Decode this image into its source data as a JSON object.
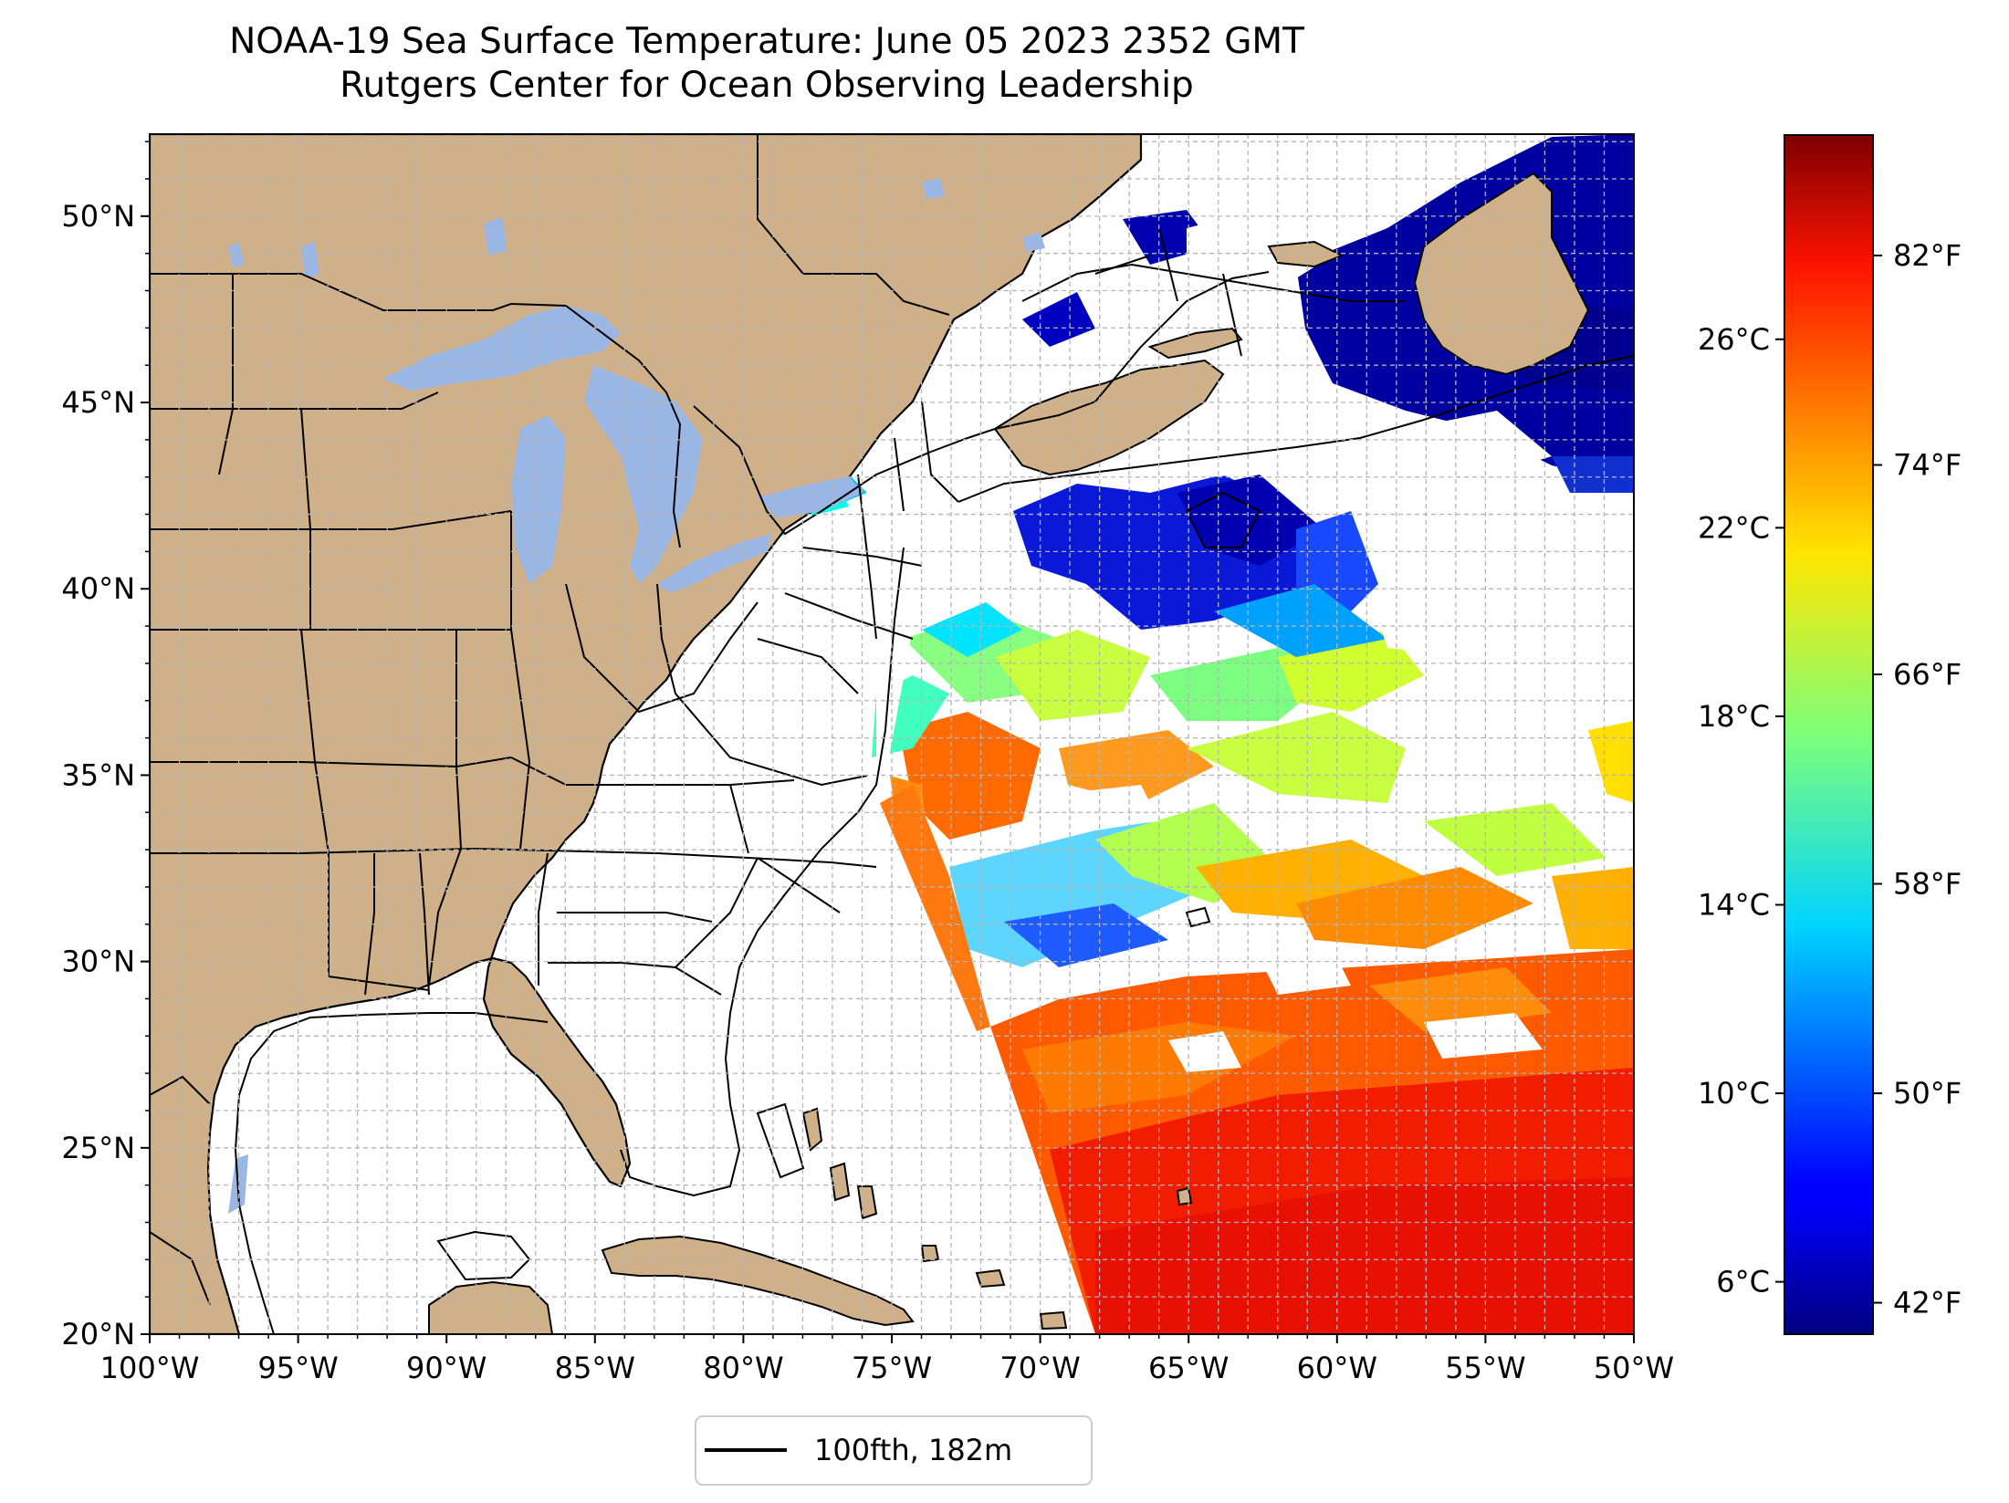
{
  "title": {
    "line1": "NOAA-19 Sea Surface Temperature: June 05 2023 2352 GMT",
    "line2": "Rutgers Center for Ocean Observing Leadership"
  },
  "map": {
    "lon_range": [
      -100,
      -50
    ],
    "lat_range": [
      20,
      52.2
    ],
    "lon_ticks": [
      {
        "value": -100,
        "label": "100°W"
      },
      {
        "value": -95,
        "label": "95°W"
      },
      {
        "value": -90,
        "label": "90°W"
      },
      {
        "value": -85,
        "label": "85°W"
      },
      {
        "value": -80,
        "label": "80°W"
      },
      {
        "value": -75,
        "label": "75°W"
      },
      {
        "value": -70,
        "label": "70°W"
      },
      {
        "value": -65,
        "label": "65°W"
      },
      {
        "value": -60,
        "label": "60°W"
      },
      {
        "value": -55,
        "label": "55°W"
      },
      {
        "value": -50,
        "label": "50°W"
      }
    ],
    "lat_ticks": [
      {
        "value": 20,
        "label": "20°N"
      },
      {
        "value": 25,
        "label": "25°N"
      },
      {
        "value": 30,
        "label": "30°N"
      },
      {
        "value": 35,
        "label": "35°N"
      },
      {
        "value": 40,
        "label": "40°N"
      },
      {
        "value": 45,
        "label": "45°N"
      },
      {
        "value": 50,
        "label": "50°N"
      }
    ],
    "colors": {
      "land": "#cfb088",
      "lakes": "#9ab6e4",
      "ocean": "#ffffff",
      "grid": "#b4b4b4",
      "borders": "#000000"
    }
  },
  "legend": {
    "label": "100fth, 182m"
  },
  "colorbar": {
    "colormap": "jet",
    "range_f": [
      40.8,
      86.6
    ],
    "celsius_ticks": [
      {
        "value": 6,
        "label": "6°C"
      },
      {
        "value": 10,
        "label": "10°C"
      },
      {
        "value": 14,
        "label": "14°C"
      },
      {
        "value": 18,
        "label": "18°C"
      },
      {
        "value": 22,
        "label": "22°C"
      },
      {
        "value": 26,
        "label": "26°C"
      }
    ],
    "fahrenheit_ticks": [
      {
        "value": 42,
        "label": "42°F"
      },
      {
        "value": 50,
        "label": "50°F"
      },
      {
        "value": 58,
        "label": "58°F"
      },
      {
        "value": 66,
        "label": "66°F"
      },
      {
        "value": 74,
        "label": "74°F"
      },
      {
        "value": 82,
        "label": "82°F"
      }
    ]
  }
}
